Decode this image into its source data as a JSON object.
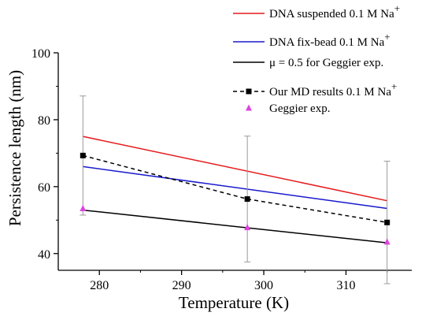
{
  "chart_data": {
    "type": "line",
    "xlabel": "Temperature (K)",
    "ylabel": "Persistence length (nm)",
    "xlim": [
      275,
      318
    ],
    "ylim": [
      35,
      100
    ],
    "xticks": [
      280,
      290,
      300,
      310
    ],
    "yticks": [
      40,
      60,
      80,
      100
    ],
    "x_tick_labels": [
      "280",
      "290",
      "300",
      "310"
    ],
    "y_tick_labels": [
      "40",
      "60",
      "80",
      "100"
    ],
    "legend_position": "top-right",
    "series": [
      {
        "name": "DNA suspended 0.1 M Na+",
        "legend_text": "DNA suspended 0.1 M Na",
        "legend_sup": "+",
        "color": "#e41a1c",
        "style": "solid",
        "marker": "none",
        "x": [
          278,
          315
        ],
        "y": [
          75,
          55.8
        ]
      },
      {
        "name": "DNA fix-bead 0.1 M Na+",
        "legend_text": "DNA fix-bead 0.1 M Na",
        "legend_sup": "+",
        "color": "#1a1acc",
        "style": "solid",
        "marker": "none",
        "x": [
          278,
          315
        ],
        "y": [
          66,
          53.5
        ]
      },
      {
        "name": "μ = 0.5 for Geggier exp.",
        "legend_text": "μ = 0.5 for Geggier exp.",
        "legend_sup": "",
        "color": "#000000",
        "style": "solid",
        "marker": "none",
        "x": [
          278,
          315
        ],
        "y": [
          53,
          43.2
        ]
      },
      {
        "name": "Our MD results 0.1 M Na+",
        "legend_text": "Our MD results 0.1 M Na",
        "legend_sup": "+",
        "color": "#000000",
        "style": "dashed",
        "marker": "square",
        "x": [
          278,
          298,
          315
        ],
        "y": [
          69.3,
          56.3,
          49.3
        ],
        "error": [
          17.8,
          18.8,
          18.3
        ]
      },
      {
        "name": "Geggier exp.",
        "legend_text": "Geggier exp.",
        "legend_sup": "",
        "color": "#dd44dd",
        "style": "none",
        "marker": "triangle",
        "x": [
          278,
          298,
          315
        ],
        "y": [
          53.5,
          47.8,
          43.5
        ]
      }
    ]
  }
}
